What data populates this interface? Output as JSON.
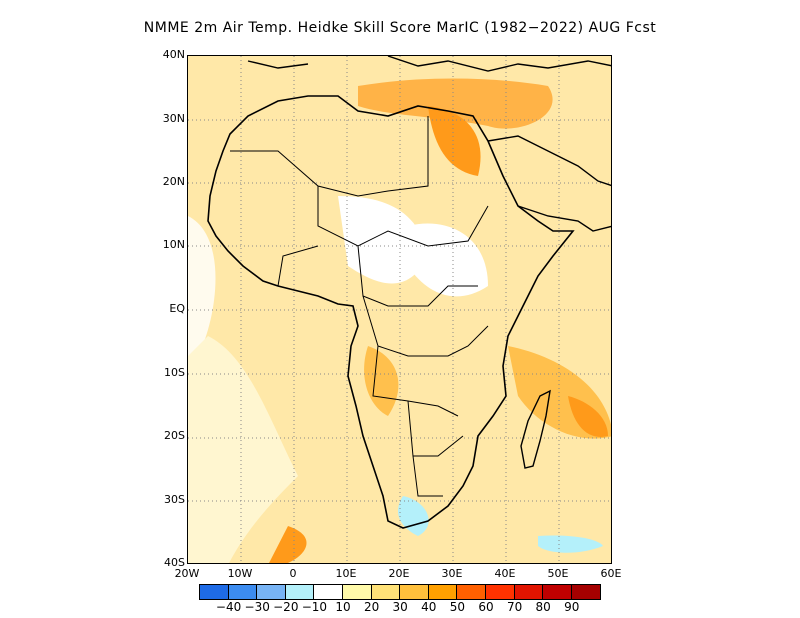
{
  "title": "NMME  2m Air Temp. Heidke Skill Score MarIC (1982−2022) AUG Fcst",
  "map": {
    "region": "Africa",
    "lat_range": [
      -40,
      40
    ],
    "lon_range": [
      -20,
      60
    ],
    "lat_labels": [
      "40N",
      "30N",
      "20N",
      "10N",
      "EQ",
      "10S",
      "20S",
      "30S",
      "40S"
    ],
    "lon_labels": [
      "20W",
      "10W",
      "0",
      "10E",
      "20E",
      "30E",
      "40E",
      "50E",
      "60E"
    ]
  },
  "colorbar": {
    "labels": [
      "−40",
      "−30",
      "−20",
      "−10",
      "10",
      "20",
      "30",
      "40",
      "50",
      "60",
      "70",
      "80",
      "90"
    ],
    "colors": [
      "#1e6be6",
      "#3c8cf0",
      "#78b4f5",
      "#b4f0fa",
      "#ffffff",
      "#fffaaa",
      "#ffe278",
      "#ffc03c",
      "#ffa000",
      "#ff6000",
      "#ff3200",
      "#e11400",
      "#c00000",
      "#a50000"
    ]
  }
}
